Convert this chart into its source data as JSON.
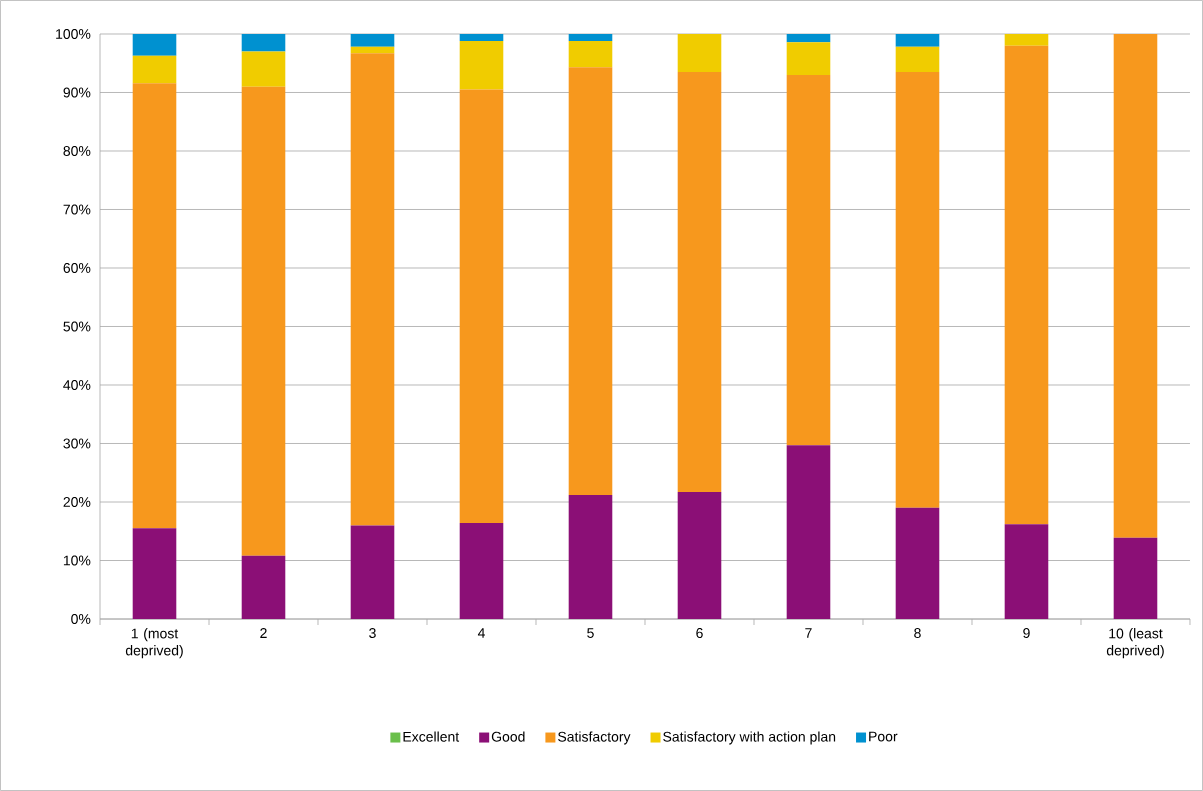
{
  "chart_data": {
    "type": "bar",
    "stacked": true,
    "categories": [
      "1 (most deprived)",
      "2",
      "3",
      "4",
      "5",
      "6",
      "7",
      "8",
      "9",
      "10 (least deprived)"
    ],
    "series": [
      {
        "name": "Excellent",
        "color": "#6abf4b",
        "values": [
          0,
          0,
          0,
          0,
          0,
          0,
          0,
          0,
          0,
          0
        ]
      },
      {
        "name": "Good",
        "color": "#8b0f76",
        "values": [
          15.5,
          10.8,
          16.0,
          16.4,
          21.2,
          21.7,
          29.7,
          19.0,
          16.2,
          13.9
        ]
      },
      {
        "name": "Satisfactory",
        "color": "#f7981d",
        "values": [
          76.1,
          80.2,
          80.7,
          74.1,
          73.1,
          71.8,
          63.3,
          74.5,
          81.8,
          86.1
        ]
      },
      {
        "name": "Satisfactory with action plan",
        "color": "#f0cc00",
        "values": [
          4.7,
          6.0,
          1.1,
          8.3,
          4.5,
          6.5,
          5.6,
          4.3,
          2.0,
          0
        ]
      },
      {
        "name": "Poor",
        "color": "#0091d0",
        "values": [
          3.7,
          3.0,
          2.2,
          1.2,
          1.2,
          0,
          1.4,
          2.2,
          0,
          0
        ]
      }
    ],
    "ylim": [
      0,
      100
    ],
    "yticks": [
      {
        "value": 0,
        "label": "0%"
      },
      {
        "value": 10,
        "label": "10%"
      },
      {
        "value": 20,
        "label": "20%"
      },
      {
        "value": 30,
        "label": "30%"
      },
      {
        "value": 40,
        "label": "40%"
      },
      {
        "value": 50,
        "label": "50%"
      },
      {
        "value": 60,
        "label": "60%"
      },
      {
        "value": 70,
        "label": "70%"
      },
      {
        "value": 80,
        "label": "80%"
      },
      {
        "value": 90,
        "label": "90%"
      },
      {
        "value": 100,
        "label": "100%"
      }
    ],
    "grid": "y",
    "legend": "bottom"
  }
}
